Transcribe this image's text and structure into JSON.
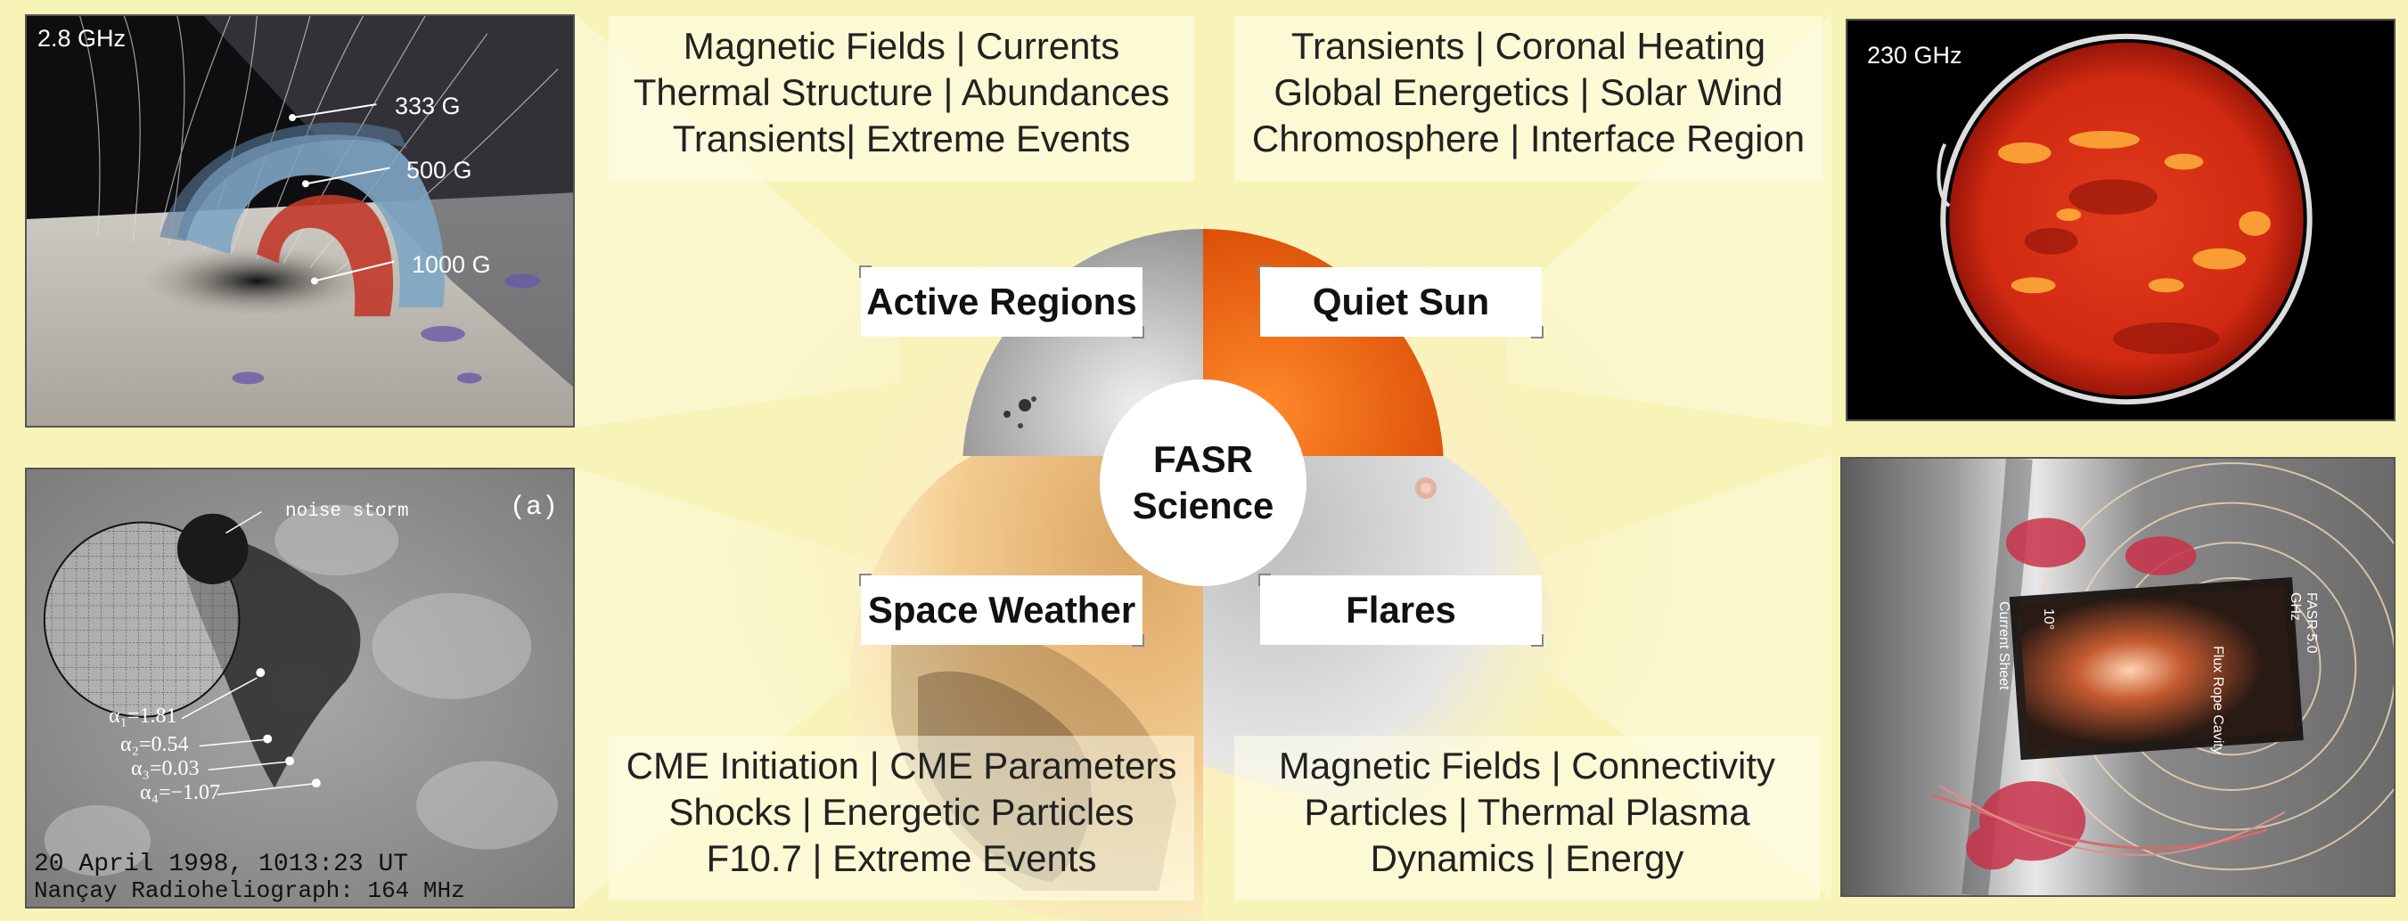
{
  "center": {
    "line1": "FASR",
    "line2": "Science"
  },
  "categories": {
    "active_regions": "Active Regions",
    "quiet_sun": "Quiet Sun",
    "space_weather": "Space Weather",
    "flares": "Flares"
  },
  "text_boxes": {
    "top_left": [
      "Magnetic Fields | Currents",
      "Thermal Structure | Abundances",
      "Transients| Extreme Events"
    ],
    "top_right": [
      "Transients | Coronal Heating",
      "Global Energetics | Solar Wind",
      "Chromosphere | Interface Region"
    ],
    "bottom_left": [
      "CME Initiation | CME Parameters",
      "Shocks | Energetic Particles",
      "F10.7 | Extreme Events"
    ],
    "bottom_right": [
      "Magnetic Fields | Connectivity",
      "Particles | Thermal Plasma",
      "Dynamics | Energy"
    ]
  },
  "panels": {
    "active_region_model": {
      "frequency": "2.8 GHz",
      "contours": [
        "333 G",
        "500 G",
        "1000 G"
      ]
    },
    "quiet_sun_image": {
      "frequency": "230 GHz"
    },
    "noise_storm_map": {
      "annotation": "noise storm",
      "panel_tag": "(a)",
      "alphas": [
        "α₁=1.81",
        "α₂=0.54",
        "α₃=0.03",
        "α₄=−1.07"
      ],
      "date": "20 April 1998, 1013:23 UT",
      "instrument": "Nançay Radioheliograph: 164 MHz"
    },
    "flare_model": {
      "labels": [
        "Current Sheet",
        "Flux Rope Cavity",
        "FASR 5.0 GHz",
        "10°"
      ]
    }
  }
}
